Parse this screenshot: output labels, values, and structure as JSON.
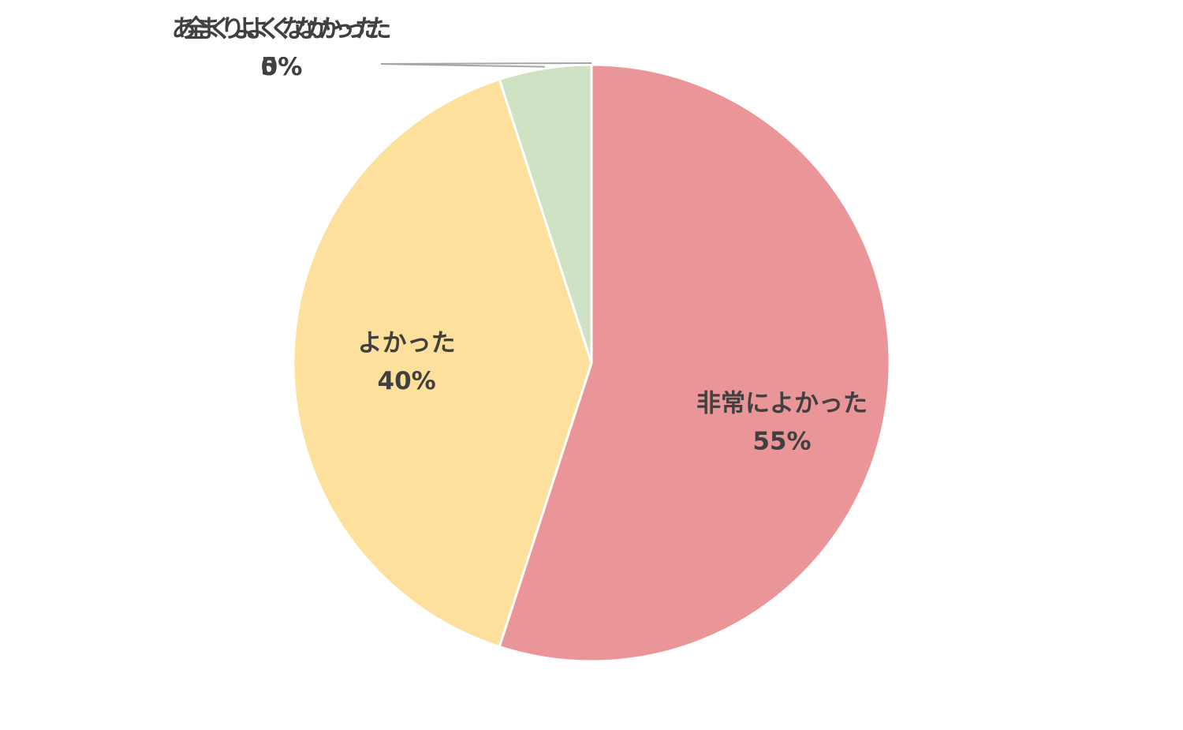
{
  "chart_data": {
    "type": "pie",
    "categories": [
      "非常によかった",
      "よかった",
      "あまりよくなかった",
      "全くよくなかった"
    ],
    "values": [
      55,
      40,
      5,
      0
    ],
    "value_labels": [
      "55%",
      "40%",
      "5%",
      "0%"
    ],
    "colors": [
      "#ea9598",
      "#fde09c",
      "#d0e2c4",
      "#c9c9c9"
    ]
  }
}
